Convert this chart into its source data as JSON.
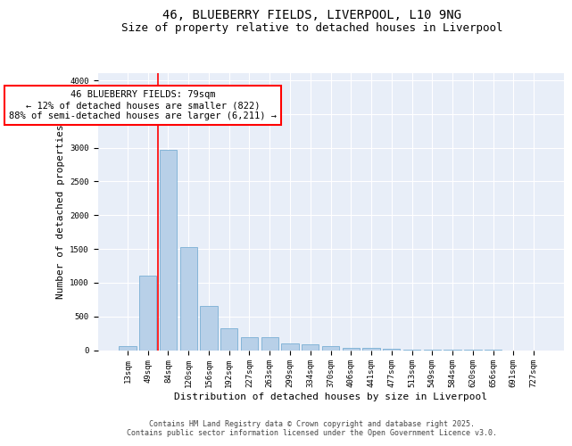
{
  "title": "46, BLUEBERRY FIELDS, LIVERPOOL, L10 9NG",
  "subtitle": "Size of property relative to detached houses in Liverpool",
  "xlabel": "Distribution of detached houses by size in Liverpool",
  "ylabel": "Number of detached properties",
  "categories": [
    "13sqm",
    "49sqm",
    "84sqm",
    "120sqm",
    "156sqm",
    "192sqm",
    "227sqm",
    "263sqm",
    "299sqm",
    "334sqm",
    "370sqm",
    "406sqm",
    "441sqm",
    "477sqm",
    "513sqm",
    "549sqm",
    "584sqm",
    "620sqm",
    "656sqm",
    "691sqm",
    "727sqm"
  ],
  "values": [
    55,
    1110,
    2970,
    1530,
    650,
    330,
    195,
    195,
    95,
    80,
    55,
    30,
    30,
    15,
    10,
    5,
    5,
    2,
    2,
    0,
    0
  ],
  "bar_color": "#b8d0e8",
  "bar_edge_color": "#7aafd4",
  "vline_x": 1.5,
  "vline_color": "red",
  "annotation_text": "46 BLUEBERRY FIELDS: 79sqm\n← 12% of detached houses are smaller (822)\n88% of semi-detached houses are larger (6,211) →",
  "ylim": [
    0,
    4100
  ],
  "yticks": [
    0,
    500,
    1000,
    1500,
    2000,
    2500,
    3000,
    3500,
    4000
  ],
  "bg_color": "#e8eef8",
  "grid_color": "#ffffff",
  "footer_text": "Contains HM Land Registry data © Crown copyright and database right 2025.\nContains public sector information licensed under the Open Government Licence v3.0.",
  "title_fontsize": 10,
  "subtitle_fontsize": 9,
  "axis_label_fontsize": 8,
  "tick_fontsize": 6.5,
  "annotation_fontsize": 7.5,
  "footer_fontsize": 6
}
